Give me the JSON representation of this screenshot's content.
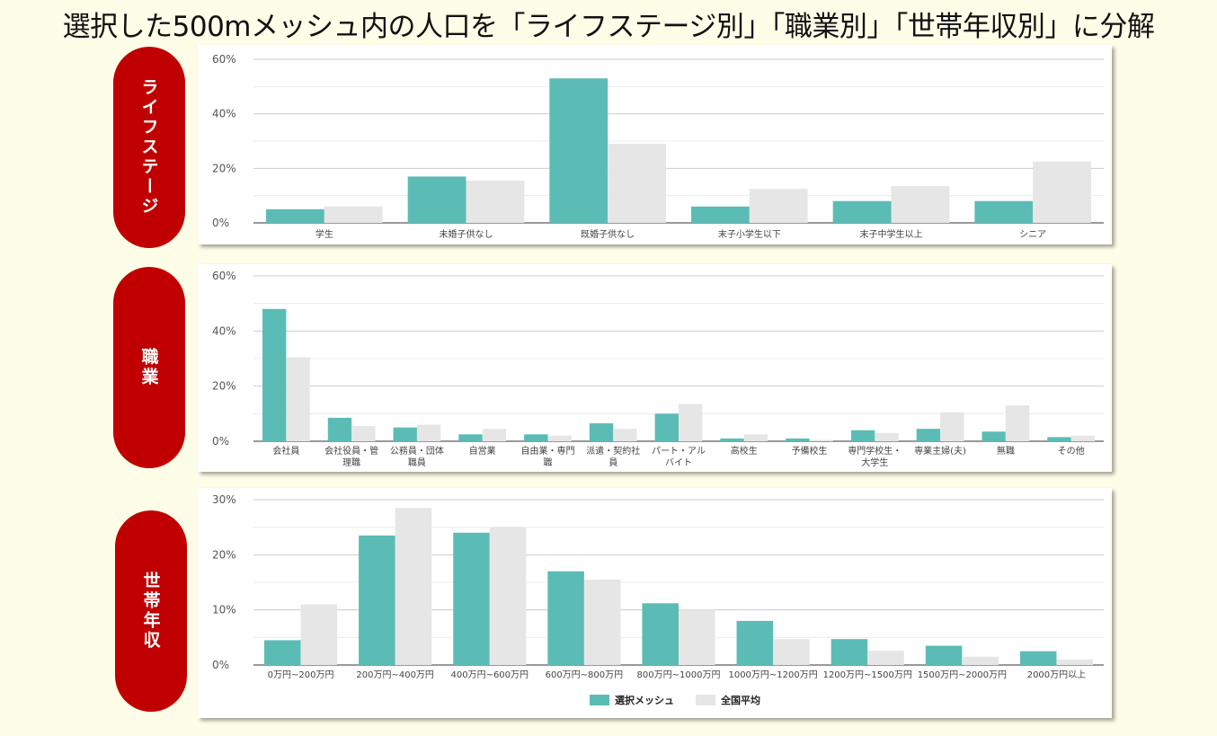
{
  "title": "選択した500mメッシュ内の人口を「ライフステージ別」「職業別」「世帯年収別」に分解",
  "colors": {
    "selected": "#5bbcb6",
    "national": "#e6e6e6",
    "label_bg": "#c00000"
  },
  "legend": {
    "selected": "選択メッシュ",
    "national": "全国平均"
  },
  "chart_data": [
    {
      "type": "bar",
      "label": "ライフステージ",
      "categories": [
        [
          "学生"
        ],
        [
          "未婚子供なし"
        ],
        [
          "既婚子供なし"
        ],
        [
          "末子小学生以下"
        ],
        [
          "末子中学生以上"
        ],
        [
          "シニア"
        ]
      ],
      "ylim": [
        0,
        60
      ],
      "yticks": [
        "0%",
        "20%",
        "40%",
        "60%"
      ],
      "series": [
        {
          "name": "選択メッシュ",
          "values": [
            5,
            17,
            53,
            6,
            8,
            8
          ]
        },
        {
          "name": "全国平均",
          "values": [
            6,
            15.5,
            29,
            12.5,
            13.5,
            22.5
          ]
        }
      ]
    },
    {
      "type": "bar",
      "label": "職業",
      "categories": [
        [
          "会社員"
        ],
        [
          "会社役員・管",
          "理職"
        ],
        [
          "公務員・団体",
          "職員"
        ],
        [
          "自営業"
        ],
        [
          "自由業・専門",
          "職"
        ],
        [
          "派遣・契約社",
          "員"
        ],
        [
          "パート・アル",
          "バイト"
        ],
        [
          "高校生"
        ],
        [
          "予備校生"
        ],
        [
          "専門学校生・",
          "大学生"
        ],
        [
          "専業主婦(夫)"
        ],
        [
          "無職"
        ],
        [
          "その他"
        ]
      ],
      "ylim": [
        0,
        60
      ],
      "yticks": [
        "0%",
        "20%",
        "40%",
        "60%"
      ],
      "series": [
        {
          "name": "選択メッシュ",
          "values": [
            48,
            8.5,
            5,
            2.5,
            2.5,
            6.5,
            10,
            1,
            1,
            4,
            4.5,
            3.5,
            1.5
          ]
        },
        {
          "name": "全国平均",
          "values": [
            30.5,
            5.5,
            6,
            4.5,
            2,
            4.5,
            13.5,
            2.5,
            0.5,
            3,
            10.5,
            13,
            2
          ]
        }
      ]
    },
    {
      "type": "bar",
      "label": "世帯年収",
      "categories": [
        [
          "0万円~200万円"
        ],
        [
          "200万円~400万円"
        ],
        [
          "400万円~600万円"
        ],
        [
          "600万円~800万円"
        ],
        [
          "800万円~1000万円"
        ],
        [
          "1000万円~1200万円"
        ],
        [
          "1200万円~1500万円"
        ],
        [
          "1500万円~2000万円"
        ],
        [
          "2000万円以上"
        ]
      ],
      "ylim": [
        0,
        30
      ],
      "yticks": [
        "0%",
        "10%",
        "20%",
        "30%"
      ],
      "series": [
        {
          "name": "選択メッシュ",
          "values": [
            4.5,
            23.5,
            24,
            17,
            11.2,
            8,
            4.7,
            3.5,
            2.5
          ]
        },
        {
          "name": "全国平均",
          "values": [
            11,
            28.5,
            25,
            15.5,
            10,
            4.7,
            2.6,
            1.5,
            1
          ]
        }
      ]
    }
  ]
}
